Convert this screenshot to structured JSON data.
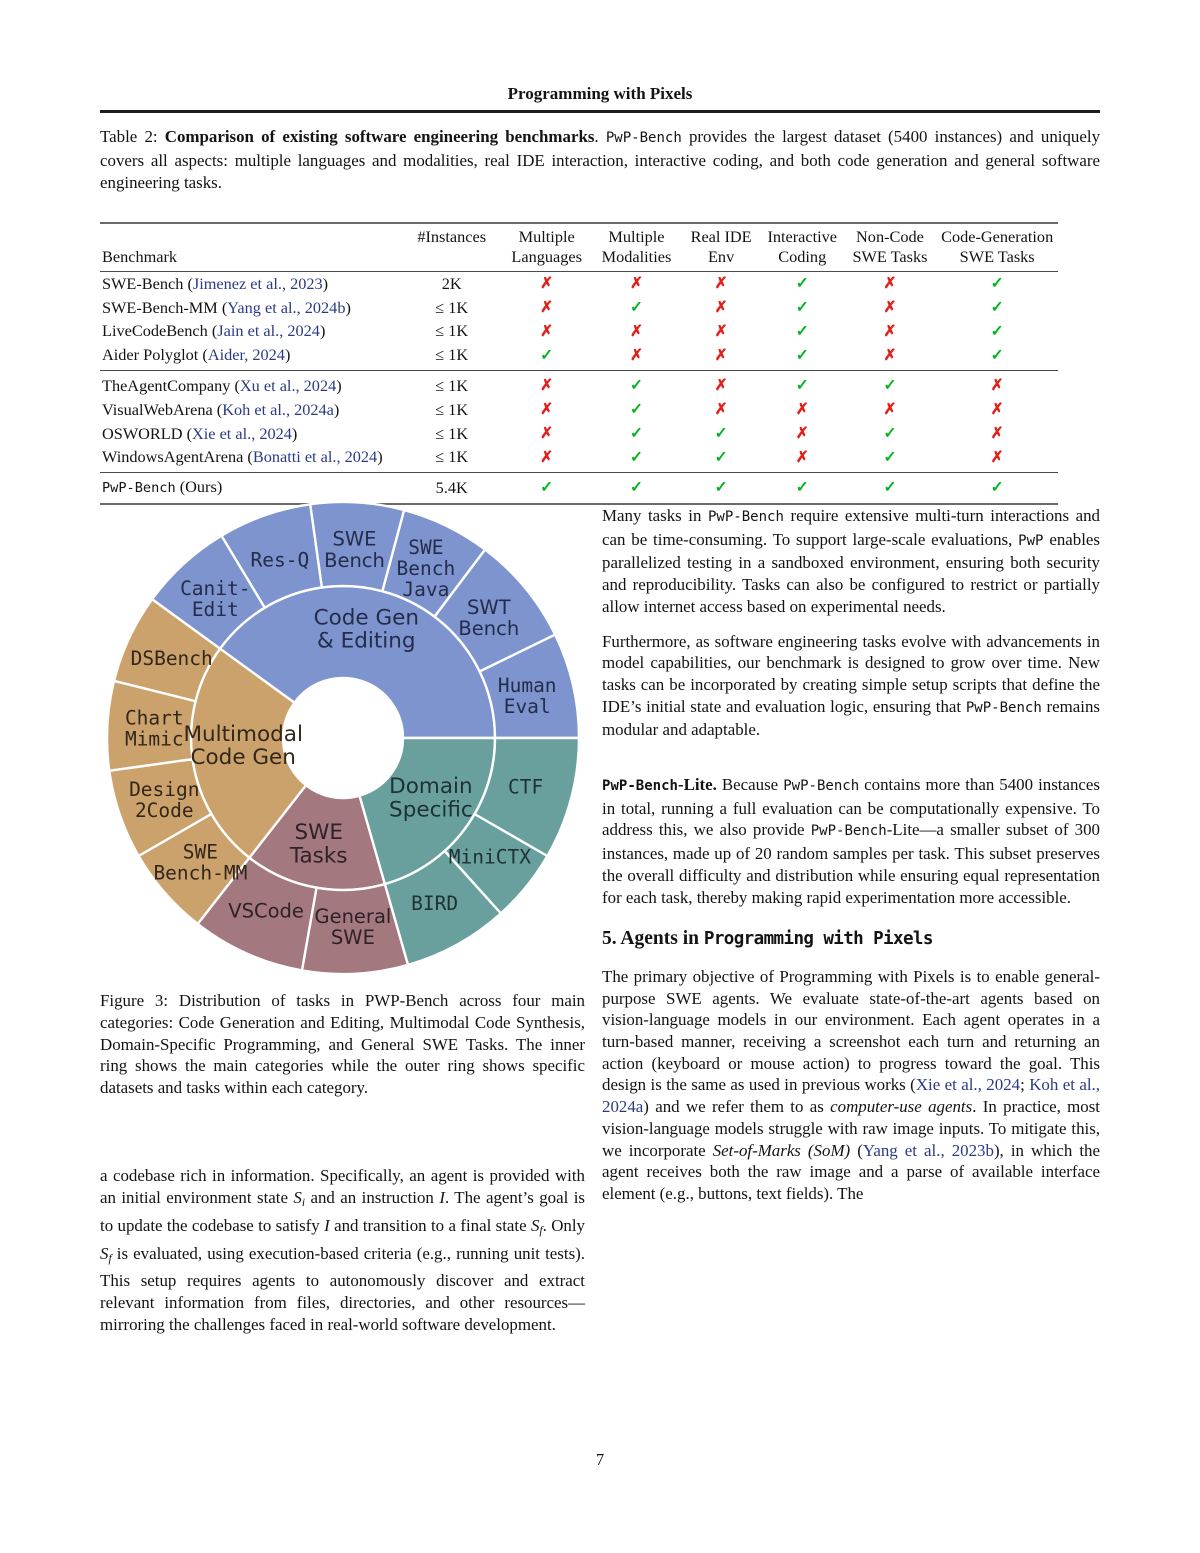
{
  "page": {
    "running_head": "Programming with Pixels",
    "page_number": "7"
  },
  "table2": {
    "caption": [
      {
        "t": "Table 2: "
      },
      {
        "t": "Comparison of existing software engineering benchmarks",
        "s": "b"
      },
      {
        "t": ". "
      },
      {
        "t": "PwP-Bench",
        "s": "m"
      },
      {
        "t": " provides the largest dataset (5400 instances) and uniquely covers all aspects: multiple languages and modalities, real IDE interaction, interactive coding, and both code generation and general software engineering tasks."
      }
    ],
    "headers": {
      "benchmark": "Benchmark",
      "cols": [
        [
          "#Instances",
          ""
        ],
        [
          "Multiple",
          "Languages"
        ],
        [
          "Multiple",
          "Modalities"
        ],
        [
          "Real IDE",
          "Env"
        ],
        [
          "Interactive",
          "Coding"
        ],
        [
          "Non-Code",
          "SWE Tasks"
        ],
        [
          "Code-Generation",
          "SWE Tasks"
        ]
      ]
    },
    "glyphs": {
      "yes": "✓",
      "no": "✗"
    },
    "colors": {
      "yes": "#00b41e",
      "no": "#e2201c",
      "citation": "#2b3a85"
    },
    "groups": [
      {
        "rows": [
          {
            "name": "SWE-Bench",
            "cite": "Jimenez et al., 2023",
            "instances": "2K",
            "marks": [
              "no",
              "no",
              "no",
              "yes",
              "no",
              "yes"
            ]
          },
          {
            "name": "SWE-Bench-MM",
            "cite": "Yang et al., 2024b",
            "instances": "≤ 1K",
            "marks": [
              "no",
              "yes",
              "no",
              "yes",
              "no",
              "yes"
            ]
          },
          {
            "name": "LiveCodeBench",
            "cite": "Jain et al., 2024",
            "instances": "≤ 1K",
            "marks": [
              "no",
              "no",
              "no",
              "yes",
              "no",
              "yes"
            ]
          },
          {
            "name": "Aider Polyglot",
            "cite": "Aider, 2024",
            "instances": "≤ 1K",
            "marks": [
              "yes",
              "no",
              "no",
              "yes",
              "no",
              "yes"
            ]
          }
        ]
      },
      {
        "rows": [
          {
            "name": "TheAgentCompany",
            "cite": "Xu et al., 2024",
            "instances": "≤ 1K",
            "marks": [
              "no",
              "yes",
              "no",
              "yes",
              "yes",
              "no"
            ]
          },
          {
            "name": "VisualWebArena",
            "cite": "Koh et al., 2024a",
            "instances": "≤ 1K",
            "marks": [
              "no",
              "yes",
              "no",
              "no",
              "no",
              "no"
            ]
          },
          {
            "name": "OSWORLD",
            "cite": "Xie et al., 2024",
            "instances": "≤ 1K",
            "marks": [
              "no",
              "yes",
              "yes",
              "no",
              "yes",
              "no"
            ]
          },
          {
            "name": "WindowsAgentArena",
            "cite": "Bonatti et al., 2024",
            "instances": "≤ 1K",
            "marks": [
              "no",
              "yes",
              "yes",
              "no",
              "yes",
              "no"
            ]
          }
        ]
      },
      {
        "rows": [
          {
            "name": "PwP-Bench",
            "name_mono": true,
            "suffix": " (Ours)",
            "instances": "5.4K",
            "marks": [
              "yes",
              "yes",
              "yes",
              "yes",
              "yes",
              "yes"
            ]
          }
        ]
      }
    ]
  },
  "chart_data": {
    "type": "sunburst",
    "description": "Distribution of PwP-Bench tasks: inner ring = 4 main categories, outer ring = datasets; angles in degrees CCW from east",
    "geometry": {
      "hole_r": 60,
      "mid_r": 152,
      "outer_r": 236,
      "inner_label_r": 110,
      "outer_label_r": 189
    },
    "categories": [
      {
        "name": "Code Gen & Editing",
        "label_lines": [
          "Code Gen",
          "& Editing"
        ],
        "color": "#7e94cf",
        "text_color": "#242c4a",
        "start": 0,
        "end": 144,
        "label_angle": 78,
        "label_radius": 112,
        "children": [
          {
            "name": "HumanEval",
            "label_lines": [
              "Human",
              "Eval"
            ],
            "start": 0,
            "end": 26,
            "mono": true
          },
          {
            "name": "SWT Bench",
            "label_lines": [
              "SWT",
              "Bench"
            ],
            "start": 26,
            "end": 53,
            "mono": false
          },
          {
            "name": "SWE Bench Java",
            "label_lines": [
              "SWE",
              "Bench",
              "Java"
            ],
            "start": 53,
            "end": 75,
            "mono": true
          },
          {
            "name": "SWE Bench",
            "label_lines": [
              "SWE",
              "Bench"
            ],
            "start": 75,
            "end": 98,
            "mono": false
          },
          {
            "name": "Res-Q",
            "label_lines": [
              "Res-Q"
            ],
            "start": 98,
            "end": 121,
            "mono": true
          },
          {
            "name": "Canit-Edit",
            "label_lines": [
              "Canit-",
              "Edit"
            ],
            "start": 121,
            "end": 144,
            "mono": true
          }
        ]
      },
      {
        "name": "Multimodal Code Gen",
        "label_lines": [
          "Multimodal",
          "Code Gen"
        ],
        "color": "#cba26c",
        "text_color": "#33261b",
        "start": 144,
        "end": 232,
        "label_angle": 184,
        "label_radius": 100,
        "children": [
          {
            "name": "DSBench",
            "label_lines": [
              "DSBench"
            ],
            "start": 144,
            "end": 166,
            "mono": true
          },
          {
            "name": "Chart Mimic",
            "label_lines": [
              "Chart",
              "Mimic"
            ],
            "start": 166,
            "end": 188,
            "mono": true
          },
          {
            "name": "Design 2Code",
            "label_lines": [
              "Design",
              "2Code"
            ],
            "start": 188,
            "end": 210,
            "mono": true
          },
          {
            "name": "SWE Bench-MM",
            "label_lines": [
              "SWE",
              "Bench-MM"
            ],
            "start": 210,
            "end": 232,
            "mono": true
          }
        ]
      },
      {
        "name": "SWE Tasks",
        "label_lines": [
          "SWE",
          "Tasks"
        ],
        "color": "#a3787f",
        "text_color": "#2e2228",
        "start": 232,
        "end": 286,
        "label_angle": 257,
        "label_radius": 108,
        "children": [
          {
            "name": "VSCode",
            "label_lines": [
              "VSCode"
            ],
            "start": 232,
            "end": 260,
            "mono": false
          },
          {
            "name": "General SWE",
            "label_lines": [
              "General",
              "SWE"
            ],
            "start": 260,
            "end": 286,
            "mono": false
          }
        ]
      },
      {
        "name": "Domain Specific",
        "label_lines": [
          "Domain",
          "Specific"
        ],
        "color": "#69a09e",
        "text_color": "#1e3134",
        "start": 286,
        "end": 360,
        "label_angle": 326,
        "label_radius": 106,
        "children": [
          {
            "name": "BIRD",
            "label_lines": [
              "BIRD"
            ],
            "start": 286,
            "end": 312,
            "mono": true
          },
          {
            "name": "MiniCTX",
            "label_lines": [
              "MiniCTX"
            ],
            "start": 312,
            "end": 330,
            "mono": true
          },
          {
            "name": "CTF",
            "label_lines": [
              "CTF"
            ],
            "start": 330,
            "end": 360,
            "mono": true
          }
        ]
      }
    ]
  },
  "figure3": {
    "caption": [
      {
        "t": "Figure 3: Distribution of tasks in PWP-Bench across four main categories: Code Generation and Editing, Multimodal Code Synthesis, Domain-Specific Programming, and General SWE Tasks. The inner ring shows the main categories while the outer ring shows specific datasets and tasks within each category."
      }
    ]
  },
  "left_column": {
    "para": [
      {
        "t": "a codebase rich in information. Specifically, an agent is provided with an initial environment state "
      },
      {
        "t": "S",
        "s": "i"
      },
      {
        "t": "i",
        "s": "sub"
      },
      {
        "t": " and an instruction "
      },
      {
        "t": "I",
        "s": "i"
      },
      {
        "t": ". The agent’s goal is to update the codebase to satisfy "
      },
      {
        "t": "I",
        "s": "i"
      },
      {
        "t": " and transition to a final state "
      },
      {
        "t": "S",
        "s": "i"
      },
      {
        "t": "f",
        "s": "sub"
      },
      {
        "t": ". Only "
      },
      {
        "t": "S",
        "s": "i"
      },
      {
        "t": "f",
        "s": "sub"
      },
      {
        "t": " is evaluated, using execution-based criteria (e.g., running unit tests). This setup requires agents to autonomously discover and extract relevant information from files, directories, and other resources—mirroring the challenges faced in real-world software development."
      }
    ]
  },
  "right_column": {
    "p1": [
      {
        "t": "Many tasks in "
      },
      {
        "t": "PwP-Bench",
        "s": "m"
      },
      {
        "t": " require extensive multi-turn interactions and can be time-consuming. To support large-scale evaluations, "
      },
      {
        "t": "PwP",
        "s": "m"
      },
      {
        "t": " enables parallelized testing in a sandboxed environment, ensuring both security and reproducibility. Tasks can also be configured to restrict or partially allow internet access based on experimental needs."
      }
    ],
    "p2": [
      {
        "t": "Furthermore, as software engineering tasks evolve with advancements in model capabilities, our benchmark is designed to grow over time. New tasks can be incorporated by creating simple setup scripts that define the IDE’s initial state and evaluation logic, ensuring that "
      },
      {
        "t": "PwP-Bench",
        "s": "m"
      },
      {
        "t": " remains modular and adaptable."
      }
    ],
    "lite": [
      {
        "t": "PwP-Bench",
        "s": "mb"
      },
      {
        "t": "-Lite.",
        "s": "b"
      },
      {
        "t": "  Because "
      },
      {
        "t": "PwP-Bench",
        "s": "m"
      },
      {
        "t": " contains more than 5400 instances in total, running a full evaluation can be computationally expensive. To address this, we also provide "
      },
      {
        "t": "PwP-Bench",
        "s": "m"
      },
      {
        "t": "-Lite—a smaller subset of 300 instances, made up of 20 random samples per task. This subset preserves the overall difficulty and distribution while ensuring equal representation for each task, thereby making rapid experimentation more accessible."
      }
    ],
    "section5_title": [
      {
        "t": "5. Agents in ",
        "s": "hb"
      },
      {
        "t": "Programming with Pixels",
        "s": "hm"
      }
    ],
    "p4": [
      {
        "t": "The primary objective of Programming with Pixels is to enable general-purpose SWE agents. We evaluate state-of-the-art agents based on vision-language models in our environment. Each agent operates in a turn-based manner, receiving a screenshot each turn and returning an action (keyboard or mouse action) to progress toward the goal. This design is the same as used in previous works ("
      },
      {
        "t": "Xie et al., 2024",
        "s": "c"
      },
      {
        "t": "; "
      },
      {
        "t": "Koh et al., 2024a",
        "s": "c"
      },
      {
        "t": ") and we refer them to as "
      },
      {
        "t": "computer-use agents",
        "s": "i"
      },
      {
        "t": ". In practice, most vision-language models struggle with raw image inputs. To mitigate this, we incorporate "
      },
      {
        "t": "Set-of-Marks (SoM)",
        "s": "i"
      },
      {
        "t": " ("
      },
      {
        "t": "Yang et al., 2023b",
        "s": "c"
      },
      {
        "t": "), in which the agent receives both the raw image and a parse of available interface element (e.g., buttons, text fields). The"
      }
    ]
  }
}
